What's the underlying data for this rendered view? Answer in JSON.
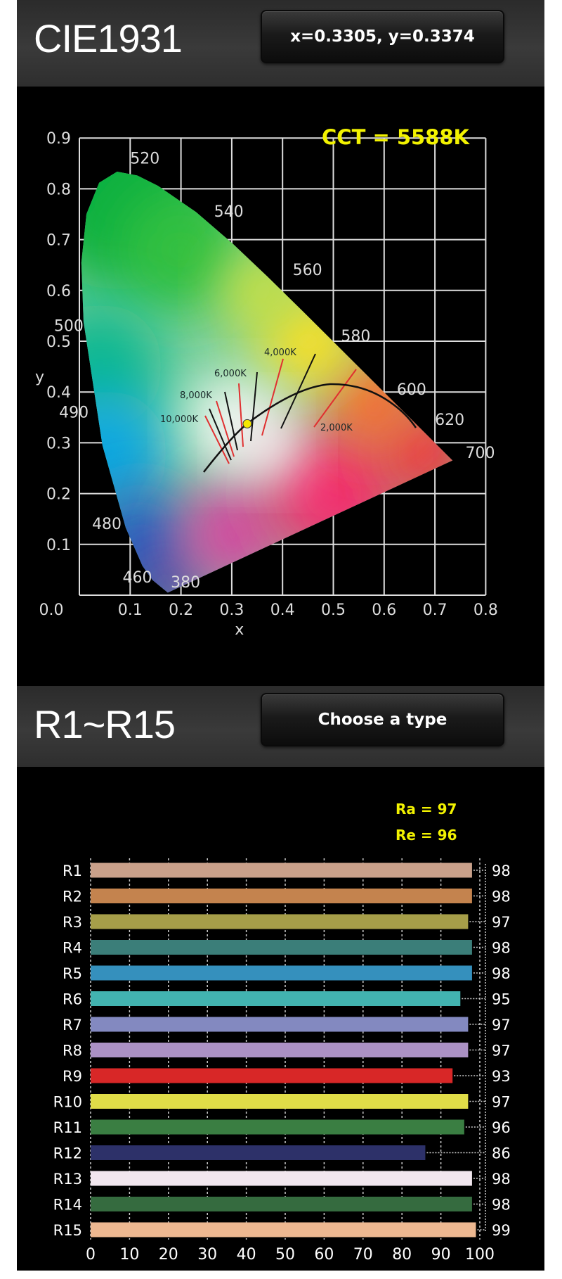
{
  "cie_header": {
    "title": "CIE1931",
    "coordinate_button": "x=0.3305, y=0.3374"
  },
  "cri_header": {
    "title": "R1~R15",
    "type_button": "Choose a type"
  },
  "chart_data": [
    {
      "type": "scatter",
      "title": "",
      "annotation": "CCT = 5588K",
      "xlabel": "x",
      "ylabel": "y",
      "xlim": [
        0.0,
        0.8
      ],
      "ylim": [
        0.0,
        0.9
      ],
      "x_ticks": [
        "0.0",
        "0.1",
        "0.2",
        "0.3",
        "0.4",
        "0.5",
        "0.6",
        "0.7",
        "0.8"
      ],
      "y_ticks": [
        "0.1",
        "0.2",
        "0.3",
        "0.4",
        "0.5",
        "0.6",
        "0.7",
        "0.8",
        "0.9"
      ],
      "grid": true,
      "wavelength_labels": [
        "520",
        "540",
        "560",
        "580",
        "600",
        "620",
        "700",
        "500",
        "490",
        "480",
        "460",
        "380"
      ],
      "isotherm_labels": [
        "10,000K",
        "8,000K",
        "6,000K",
        "4,000K",
        "2,000K"
      ],
      "point": {
        "x": 0.3305,
        "y": 0.3374,
        "color": "#f5e800"
      },
      "annotation_color": "#f2f200"
    },
    {
      "type": "bar",
      "orientation": "horizontal",
      "summary": [
        "Ra = 97",
        "Re = 96"
      ],
      "categories": [
        "R1",
        "R2",
        "R3",
        "R4",
        "R5",
        "R6",
        "R7",
        "R8",
        "R9",
        "R10",
        "R11",
        "R12",
        "R13",
        "R14",
        "R15"
      ],
      "values": [
        98,
        98,
        97,
        98,
        98,
        95,
        97,
        97,
        93,
        97,
        96,
        86,
        98,
        98,
        99
      ],
      "colors": [
        "#c9a08a",
        "#c4834e",
        "#a69e49",
        "#3b7e79",
        "#3590bd",
        "#42b3b0",
        "#8389c0",
        "#ab91c4",
        "#d82727",
        "#e0dd48",
        "#3a7e42",
        "#2d3169",
        "#f1e6ee",
        "#356b3f",
        "#edb891"
      ],
      "x_ticks": [
        "0",
        "10",
        "20",
        "30",
        "40",
        "50",
        "60",
        "70",
        "80",
        "90",
        "100"
      ],
      "xlim": [
        0,
        100
      ],
      "grid": true
    }
  ]
}
